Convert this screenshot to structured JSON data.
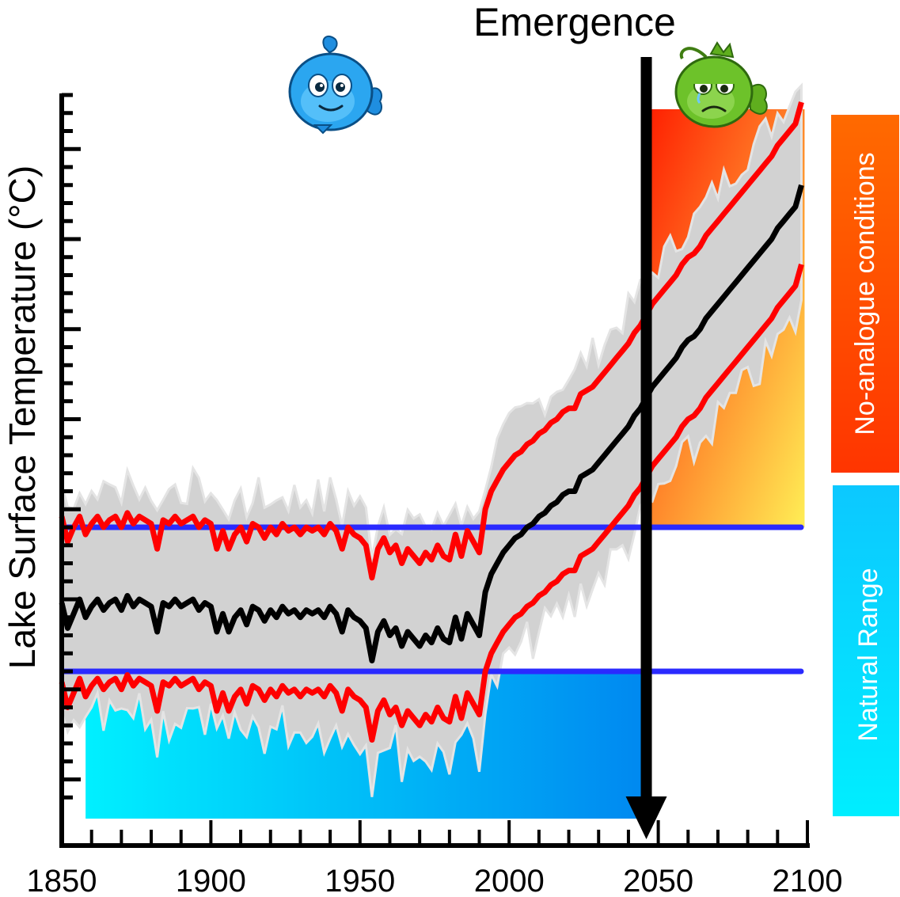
{
  "chart_data": {
    "type": "line",
    "title": "Emergence",
    "ylabel": "Lake Surface Temperature (°C)",
    "xlabel": "",
    "xlim": [
      1850,
      2100
    ],
    "x_ticks": [
      1850,
      1900,
      1950,
      2000,
      2050,
      2100
    ],
    "x_tick_labels": [
      "1850",
      "1900",
      "1950",
      "2000",
      "2050",
      "2100"
    ],
    "ylim": [
      -6,
      14
    ],
    "natural_range": [
      -2,
      2
    ],
    "emergence_year": 2046,
    "no_analogue_label": "No-analogue conditions",
    "natural_range_label": "Natural Range",
    "colors": {
      "mean": "#000000",
      "bounds": "#ff0000",
      "threshold": "#2a2aff",
      "envelope": "#d2d2d2",
      "natural_from": "#00f0ff",
      "natural_to": "#0088f0",
      "noanalogue_from": "#ff1e00",
      "noanalogue_to": "#ffee55"
    },
    "icons": [
      "happy-blue-fish-icon",
      "sad-green-fish-icon"
    ],
    "series": [
      {
        "x": [
          1850,
          1852,
          1854,
          1856,
          1858,
          1860,
          1862,
          1864,
          1866,
          1868,
          1870,
          1872,
          1874,
          1876,
          1878,
          1880,
          1882,
          1884,
          1886,
          1888,
          1890,
          1892,
          1894,
          1896,
          1898,
          1900,
          1902,
          1904,
          1906,
          1908,
          1910,
          1912,
          1914,
          1916,
          1918,
          1920,
          1922,
          1924,
          1926,
          1928,
          1930,
          1932,
          1934,
          1936,
          1938,
          1940,
          1942,
          1944,
          1946,
          1948,
          1950,
          1952,
          1954,
          1956,
          1958,
          1960,
          1962,
          1964,
          1966,
          1968,
          1970,
          1972,
          1974,
          1976,
          1978,
          1980,
          1982,
          1984,
          1986,
          1988,
          1990,
          1992,
          1994,
          1996,
          1998,
          2000,
          2002,
          2004,
          2006,
          2008,
          2010,
          2012,
          2014,
          2016,
          2018,
          2020,
          2022,
          2024,
          2026,
          2028,
          2030,
          2032,
          2034,
          2036,
          2038,
          2040,
          2042,
          2044,
          2046,
          2048,
          2050,
          2052,
          2054,
          2056,
          2058,
          2060,
          2062,
          2064,
          2066,
          2068,
          2070,
          2072,
          2074,
          2076,
          2078,
          2080,
          2082,
          2084,
          2086,
          2088,
          2090,
          2092,
          2094,
          2096,
          2098
        ],
        "values": [
          -0.1,
          -0.8,
          -0.4,
          0.0,
          -0.5,
          -0.2,
          0.0,
          -0.3,
          -0.1,
          0.0,
          -0.3,
          0.1,
          -0.2,
          0.0,
          -0.1,
          -0.2,
          -0.9,
          -0.1,
          -0.2,
          0.0,
          -0.2,
          -0.1,
          0.0,
          -0.3,
          -0.1,
          -0.2,
          -0.9,
          -0.4,
          -0.9,
          -0.5,
          -0.3,
          -0.7,
          -0.2,
          -0.3,
          -0.6,
          -0.3,
          -0.5,
          -0.2,
          -0.4,
          -0.3,
          -0.5,
          -0.3,
          -0.4,
          -0.3,
          -0.5,
          -0.2,
          -0.4,
          -0.9,
          -0.3,
          -0.5,
          -0.6,
          -0.8,
          -1.7,
          -0.9,
          -0.6,
          -1.0,
          -0.8,
          -1.3,
          -0.9,
          -1.1,
          -1.3,
          -1.0,
          -1.2,
          -0.8,
          -1.1,
          -1.2,
          -0.5,
          -1.1,
          -0.4,
          -0.7,
          -1.0,
          0.2,
          0.7,
          1.0,
          1.3,
          1.5,
          1.7,
          1.8,
          2.0,
          2.1,
          2.3,
          2.4,
          2.6,
          2.7,
          2.9,
          3.0,
          3.0,
          3.4,
          3.5,
          3.6,
          3.8,
          4.0,
          4.2,
          4.4,
          4.6,
          4.8,
          5.1,
          5.3,
          5.6,
          5.9,
          6.1,
          6.3,
          6.5,
          6.7,
          7.0,
          7.2,
          7.3,
          7.5,
          7.8,
          8.0,
          8.2,
          8.4,
          8.6,
          8.8,
          9.0,
          9.2,
          9.4,
          9.6,
          9.8,
          10.0,
          10.3,
          10.5,
          10.7,
          10.9,
          11.5
        ]
      },
      {
        "x": [
          1850,
          1852,
          1854,
          1856,
          1858,
          1860,
          1862,
          1864,
          1866,
          1868,
          1870,
          1872,
          1874,
          1876,
          1878,
          1880,
          1882,
          1884,
          1886,
          1888,
          1890,
          1892,
          1894,
          1896,
          1898,
          1900,
          1902,
          1904,
          1906,
          1908,
          1910,
          1912,
          1914,
          1916,
          1918,
          1920,
          1922,
          1924,
          1926,
          1928,
          1930,
          1932,
          1934,
          1936,
          1938,
          1940,
          1942,
          1944,
          1946,
          1948,
          1950,
          1952,
          1954,
          1956,
          1958,
          1960,
          1962,
          1964,
          1966,
          1968,
          1970,
          1972,
          1974,
          1976,
          1978,
          1980,
          1982,
          1984,
          1986,
          1988,
          1990,
          1992,
          1994,
          1996,
          1998,
          2000,
          2002,
          2004,
          2006,
          2008,
          2010,
          2012,
          2014,
          2016,
          2018,
          2020,
          2022,
          2024,
          2026,
          2028,
          2030,
          2032,
          2034,
          2036,
          2038,
          2040,
          2042,
          2044,
          2046,
          2048,
          2050,
          2052,
          2054,
          2056,
          2058,
          2060,
          2062,
          2064,
          2066,
          2068,
          2070,
          2072,
          2074,
          2076,
          2078,
          2080,
          2082,
          2084,
          2086,
          2088,
          2090,
          2092,
          2094,
          2096,
          2098
        ],
        "values": [
          2.3,
          1.6,
          2.0,
          2.3,
          1.8,
          2.1,
          2.3,
          2.0,
          2.2,
          2.3,
          2.0,
          2.4,
          2.1,
          2.3,
          2.2,
          2.1,
          1.4,
          2.2,
          2.1,
          2.3,
          2.1,
          2.2,
          2.3,
          2.0,
          2.2,
          2.1,
          1.4,
          1.9,
          1.4,
          1.8,
          2.0,
          1.6,
          2.1,
          2.0,
          1.7,
          2.0,
          1.8,
          2.1,
          1.9,
          2.0,
          1.8,
          2.0,
          1.9,
          2.0,
          1.8,
          2.1,
          1.9,
          1.4,
          2.0,
          1.8,
          1.7,
          1.5,
          0.6,
          1.4,
          1.7,
          1.3,
          1.5,
          1.0,
          1.4,
          1.2,
          1.0,
          1.3,
          1.1,
          1.5,
          1.2,
          1.1,
          1.8,
          1.2,
          1.9,
          1.6,
          1.3,
          2.5,
          3.0,
          3.3,
          3.6,
          3.8,
          4.0,
          4.1,
          4.3,
          4.4,
          4.6,
          4.7,
          4.9,
          5.0,
          5.2,
          5.3,
          5.3,
          5.7,
          5.8,
          5.9,
          6.1,
          6.3,
          6.5,
          6.7,
          6.9,
          7.1,
          7.4,
          7.6,
          7.9,
          8.2,
          8.4,
          8.6,
          8.8,
          9.0,
          9.3,
          9.5,
          9.6,
          9.8,
          10.1,
          10.3,
          10.5,
          10.7,
          10.9,
          11.1,
          11.3,
          11.5,
          11.7,
          11.9,
          12.1,
          12.3,
          12.6,
          12.8,
          13.0,
          13.2,
          13.8
        ]
      },
      {
        "x": [
          1850,
          1852,
          1854,
          1856,
          1858,
          1860,
          1862,
          1864,
          1866,
          1868,
          1870,
          1872,
          1874,
          1876,
          1878,
          1880,
          1882,
          1884,
          1886,
          1888,
          1890,
          1892,
          1894,
          1896,
          1898,
          1900,
          1902,
          1904,
          1906,
          1908,
          1910,
          1912,
          1914,
          1916,
          1918,
          1920,
          1922,
          1924,
          1926,
          1928,
          1930,
          1932,
          1934,
          1936,
          1938,
          1940,
          1942,
          1944,
          1946,
          1948,
          1950,
          1952,
          1954,
          1956,
          1958,
          1960,
          1962,
          1964,
          1966,
          1968,
          1970,
          1972,
          1974,
          1976,
          1978,
          1980,
          1982,
          1984,
          1986,
          1988,
          1990,
          1992,
          1994,
          1996,
          1998,
          2000,
          2002,
          2004,
          2006,
          2008,
          2010,
          2012,
          2014,
          2016,
          2018,
          2020,
          2022,
          2024,
          2026,
          2028,
          2030,
          2032,
          2034,
          2036,
          2038,
          2040,
          2042,
          2044,
          2046,
          2048,
          2050,
          2052,
          2054,
          2056,
          2058,
          2060,
          2062,
          2064,
          2066,
          2068,
          2070,
          2072,
          2074,
          2076,
          2078,
          2080,
          2082,
          2084,
          2086,
          2088,
          2090,
          2092,
          2094,
          2096,
          2098
        ],
        "values": [
          -2.3,
          -3.0,
          -2.6,
          -2.2,
          -2.7,
          -2.4,
          -2.2,
          -2.5,
          -2.3,
          -2.2,
          -2.5,
          -2.1,
          -2.4,
          -2.2,
          -2.3,
          -2.4,
          -3.1,
          -2.3,
          -2.4,
          -2.2,
          -2.4,
          -2.3,
          -2.2,
          -2.5,
          -2.3,
          -2.4,
          -3.1,
          -2.6,
          -3.1,
          -2.7,
          -2.5,
          -2.9,
          -2.4,
          -2.5,
          -2.8,
          -2.5,
          -2.7,
          -2.4,
          -2.6,
          -2.5,
          -2.7,
          -2.5,
          -2.6,
          -2.5,
          -2.7,
          -2.4,
          -2.6,
          -3.1,
          -2.5,
          -2.7,
          -2.8,
          -3.0,
          -3.9,
          -3.1,
          -2.8,
          -3.2,
          -3.0,
          -3.5,
          -3.1,
          -3.3,
          -3.5,
          -3.2,
          -3.4,
          -3.0,
          -3.3,
          -3.4,
          -2.7,
          -3.3,
          -2.6,
          -2.9,
          -3.2,
          -2.0,
          -1.5,
          -1.2,
          -0.9,
          -0.7,
          -0.5,
          -0.4,
          -0.2,
          -0.1,
          0.1,
          0.2,
          0.4,
          0.5,
          0.7,
          0.8,
          0.8,
          1.2,
          1.3,
          1.4,
          1.6,
          1.8,
          2.0,
          2.2,
          2.4,
          2.6,
          2.9,
          3.1,
          3.4,
          3.7,
          3.9,
          4.1,
          4.3,
          4.5,
          4.8,
          5.0,
          5.1,
          5.3,
          5.6,
          5.8,
          6.0,
          6.2,
          6.4,
          6.6,
          6.8,
          7.0,
          7.2,
          7.4,
          7.6,
          7.8,
          8.1,
          8.3,
          8.5,
          8.7,
          9.3
        ]
      }
    ]
  }
}
